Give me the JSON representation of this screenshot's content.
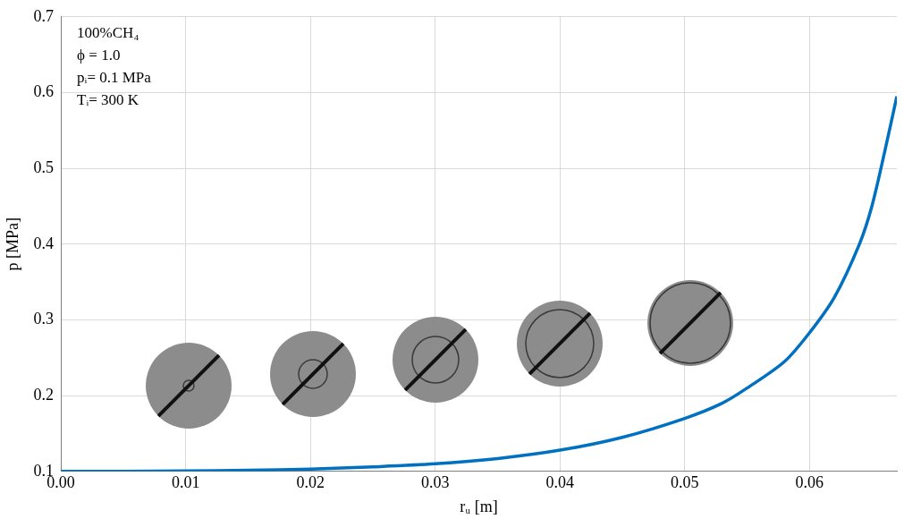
{
  "chart_data": {
    "type": "line",
    "x_label": "rᵤ [m]",
    "y_label": "p [MPa]",
    "annotations": [
      "100%CH₄",
      "ϕ = 1.0",
      "pᵢ= 0.1 MPa",
      "Tᵢ= 300 K"
    ],
    "x": [
      0,
      0.005,
      0.01,
      0.015,
      0.02,
      0.025,
      0.03,
      0.035,
      0.04,
      0.045,
      0.05,
      0.053,
      0.055,
      0.058,
      0.06,
      0.062,
      0.064,
      0.065,
      0.066,
      0.067
    ],
    "values": [
      0.1,
      0.1002,
      0.1006,
      0.1015,
      0.103,
      0.106,
      0.11,
      0.117,
      0.128,
      0.145,
      0.17,
      0.19,
      0.21,
      0.245,
      0.283,
      0.33,
      0.4,
      0.45,
      0.52,
      0.595
    ],
    "color": "#0070c0",
    "marker": "none",
    "line_style": "solid",
    "xlim": [
      0,
      0.067
    ],
    "ylim": [
      0.1,
      0.7
    ],
    "xticks": [
      {
        "value": 0,
        "label": "0.00"
      },
      0.01,
      0.02,
      0.03,
      0.04,
      0.05,
      0.06
    ],
    "yticks": [
      0.1,
      0.2,
      0.3,
      0.4,
      0.5,
      0.6,
      0.7
    ],
    "grid": true
  }
}
